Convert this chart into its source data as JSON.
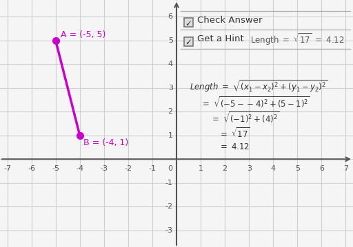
{
  "point_A": [
    -5,
    5
  ],
  "point_B": [
    -4,
    1
  ],
  "label_A": "A = (-5, 5)",
  "label_B": "B = (-4, 1)",
  "line_color": "#cc00cc",
  "point_color": "#cc00cc",
  "xmin": -7.3,
  "xmax": 7.3,
  "ymin": -3.7,
  "ymax": 6.7,
  "xticks": [
    -7,
    -6,
    -5,
    -4,
    -3,
    -2,
    -1,
    1,
    2,
    3,
    4,
    5,
    6,
    7
  ],
  "yticks": [
    -3,
    -2,
    -1,
    1,
    2,
    3,
    4,
    5,
    6
  ],
  "grid_color": "#d0d0d0",
  "axis_color": "#555555",
  "background_color": "#f5f5f5",
  "formula_color": "#333333",
  "ui_color": "#555555"
}
